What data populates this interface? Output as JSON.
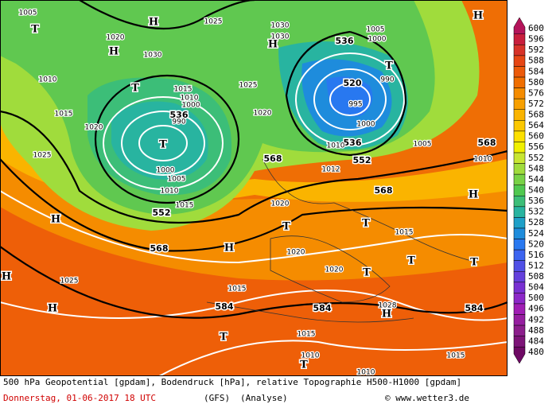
{
  "map": {
    "geopotential_labels": [
      "536",
      "520",
      "536",
      "536",
      "552",
      "552",
      "568",
      "568",
      "568",
      "568",
      "584",
      "584",
      "584"
    ],
    "pressure_labels": [
      "1005",
      "1020",
      "1030",
      "1025",
      "1030",
      "1030",
      "1010",
      "1015",
      "1020",
      "1025",
      "1015",
      "1010",
      "1000",
      "990",
      "1000",
      "1005",
      "1010",
      "1015",
      "1025",
      "1020",
      "1005",
      "1000",
      "990",
      "995",
      "1000",
      "1010",
      "1005",
      "1010",
      "1012",
      "1020",
      "1015",
      "1020",
      "1020",
      "1015",
      "1025",
      "1028",
      "1015",
      "1010",
      "1015",
      "1010"
    ],
    "pressure_centers": [
      "H",
      "T",
      "H",
      "H",
      "T",
      "T",
      "H",
      "T",
      "H",
      "H",
      "T",
      "T",
      "H",
      "T",
      "T",
      "T",
      "H",
      "H",
      "H",
      "T",
      "T"
    ]
  },
  "colorbar": {
    "levels": [
      600,
      596,
      592,
      588,
      584,
      580,
      576,
      572,
      568,
      564,
      560,
      556,
      552,
      548,
      544,
      540,
      536,
      532,
      528,
      524,
      520,
      516,
      512,
      508,
      504,
      500,
      496,
      492,
      488,
      484,
      480
    ],
    "colors": [
      "#b4145a",
      "#c81e3c",
      "#d73228",
      "#e64614",
      "#ec5a0a",
      "#f06e00",
      "#f58c00",
      "#f8a000",
      "#fab400",
      "#fcc800",
      "#fde000",
      "#f0f000",
      "#c8e632",
      "#a0dc3c",
      "#78d246",
      "#50c850",
      "#3cbe78",
      "#28b4a0",
      "#1ea0c8",
      "#1e8cdc",
      "#2878f0",
      "#3c64f0",
      "#5050e6",
      "#6440dc",
      "#7830d2",
      "#8c28c8",
      "#a01eb4",
      "#961ea0",
      "#8c1e8c",
      "#7d1478",
      "#6e0a64"
    ]
  },
  "footer": {
    "description": "500 hPa Geopotential [gpdam], Bodendruck [hPa], relative Topographie H500-H1000 [gpdam]",
    "date": "Donnerstag, 01-06-2017  18 UTC",
    "model": "(GFS)",
    "analysis": "(Analyse)",
    "copyright": "© www.wetter3.de"
  }
}
